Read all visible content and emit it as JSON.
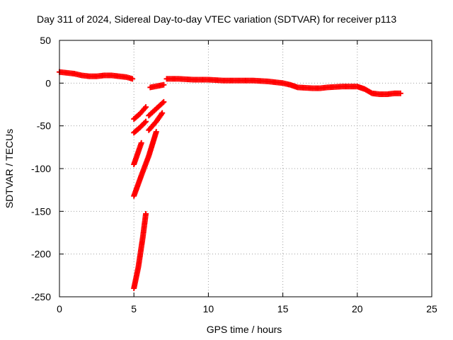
{
  "chart_data": {
    "type": "scatter",
    "title": "Day 311 of 2024, Sidereal Day-to-day VTEC variation (SDTVAR) for receiver p113",
    "xlabel": "GPS time / hours",
    "ylabel": "SDTVAR / TECUs",
    "xlim": [
      0,
      25
    ],
    "ylim": [
      -250,
      50
    ],
    "xticks": [
      0,
      5,
      10,
      15,
      20,
      25
    ],
    "yticks": [
      -250,
      -200,
      -150,
      -100,
      -50,
      0,
      50
    ],
    "xtick_labels": [
      "0",
      "5",
      "10",
      "15",
      "20",
      "25"
    ],
    "ytick_labels": [
      "-250",
      "-200",
      "-150",
      "-100",
      "-50",
      "0",
      "50"
    ],
    "grid": true,
    "marker": "plus",
    "color": "#ff0000",
    "series": [
      {
        "name": "main-trend",
        "x": [
          0.0,
          0.5,
          1.0,
          1.5,
          2.0,
          2.5,
          3.0,
          3.5,
          4.0,
          4.5,
          4.9
        ],
        "y": [
          13,
          12,
          11,
          9,
          8,
          8,
          9,
          9,
          8,
          7,
          5
        ]
      },
      {
        "name": "recovery-short",
        "x": [
          6.1,
          6.4,
          6.7,
          7.0
        ],
        "y": [
          -5,
          -4,
          -3,
          -2
        ]
      },
      {
        "name": "main-trend-2",
        "x": [
          7.2,
          8.0,
          9.0,
          10.0,
          11.0,
          12.0,
          13.0,
          14.0,
          15.0,
          15.5,
          16.0,
          17.0,
          17.5,
          18.0,
          19.0,
          20.0,
          20.5,
          21.0,
          21.5,
          22.0,
          22.5,
          22.9
        ],
        "y": [
          5,
          5,
          4,
          4,
          3,
          3,
          3,
          2,
          0,
          -2,
          -5,
          -6,
          -6,
          -5,
          -4,
          -4,
          -7,
          -12,
          -13,
          -13,
          -12,
          -12
        ]
      },
      {
        "name": "arc-1",
        "x": [
          5.0,
          5.4,
          5.8
        ],
        "y": [
          -42,
          -36,
          -28
        ]
      },
      {
        "name": "arc-2",
        "x": [
          6.0,
          6.5,
          7.0
        ],
        "y": [
          -38,
          -30,
          -22
        ]
      },
      {
        "name": "arc-3",
        "x": [
          5.0,
          5.4,
          5.8
        ],
        "y": [
          -58,
          -52,
          -45
        ]
      },
      {
        "name": "arc-4",
        "x": [
          6.0,
          6.5,
          6.9
        ],
        "y": [
          -55,
          -45,
          -35
        ]
      },
      {
        "name": "arc-5",
        "x": [
          5.0,
          5.2,
          5.5
        ],
        "y": [
          -95,
          -85,
          -70
        ]
      },
      {
        "name": "arc-6",
        "x": [
          5.0,
          5.5,
          6.0,
          6.5
        ],
        "y": [
          -132,
          -108,
          -85,
          -57
        ]
      },
      {
        "name": "arc-7",
        "x": [
          5.0,
          5.3,
          5.6,
          5.8
        ],
        "y": [
          -240,
          -215,
          -180,
          -153
        ]
      }
    ]
  }
}
